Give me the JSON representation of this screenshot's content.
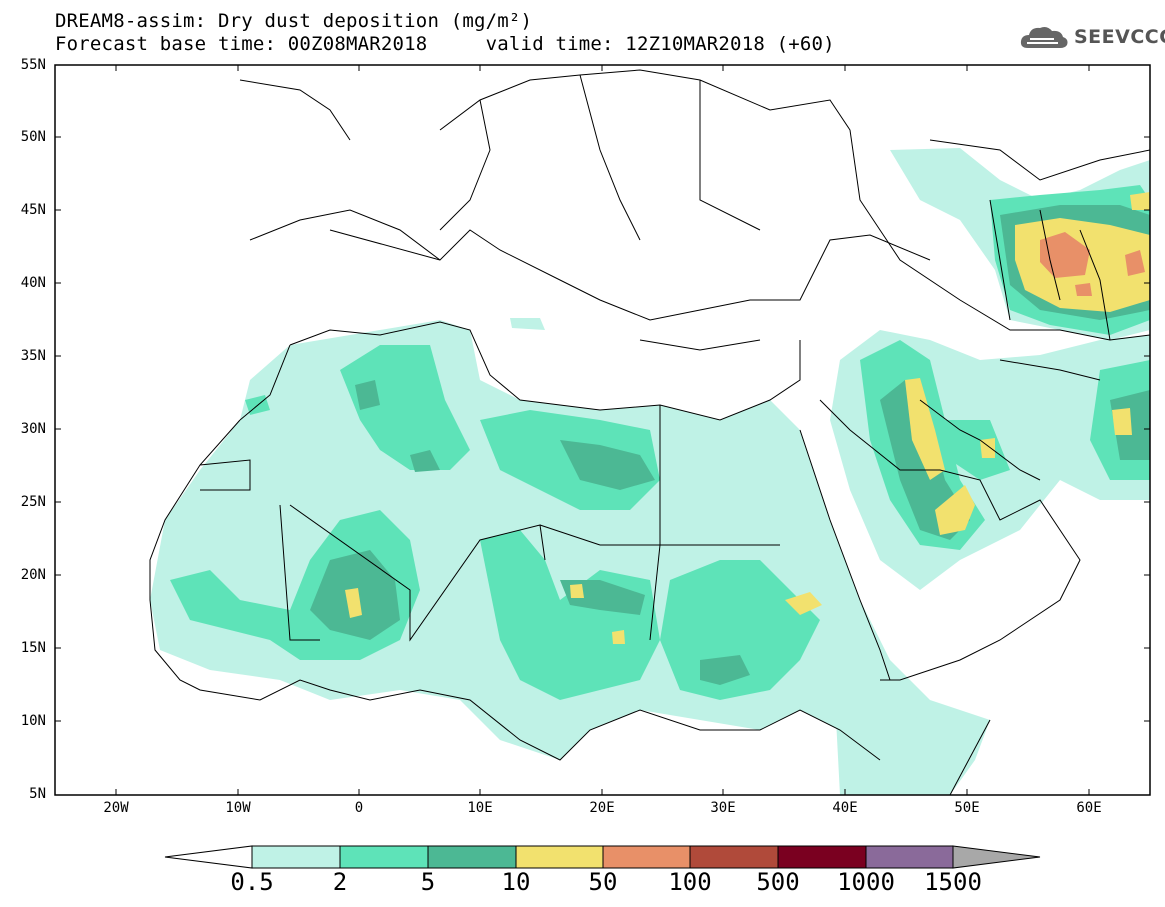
{
  "header": {
    "title": "DREAM8-assim: Dry dust deposition (mg/m²)",
    "subtitle": "Forecast base time: 00Z08MAR2018     valid time: 12Z10MAR2018 (+60)",
    "logo_text": "SEEVCCC",
    "logo_icon": "cloud-logo-icon"
  },
  "map": {
    "lon_range": [
      -25,
      65
    ],
    "lat_range": [
      5,
      55
    ],
    "lat_ticks": [
      "55N",
      "50N",
      "45N",
      "40N",
      "35N",
      "30N",
      "25N",
      "20N",
      "15N",
      "10N",
      "5N"
    ],
    "lon_ticks": [
      "20W",
      "10W",
      "0",
      "10E",
      "20E",
      "30E",
      "40E",
      "50E",
      "60E"
    ]
  },
  "colorbar": {
    "levels": [
      "0.5",
      "2",
      "5",
      "10",
      "50",
      "100",
      "500",
      "1000",
      "1500"
    ],
    "colors": [
      "#ffffff",
      "#bff2e6",
      "#5ee3b8",
      "#4cb894",
      "#f2e16e",
      "#e89068",
      "#b04a3a",
      "#7a0020",
      "#8a6a9a",
      "#a8a8a8"
    ]
  }
}
